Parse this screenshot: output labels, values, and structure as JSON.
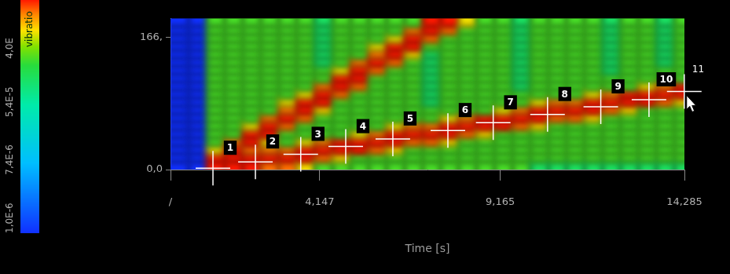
{
  "chart_data": {
    "type": "heatmap",
    "x_label": "Time [s]",
    "xlim": [
      0,
      14.285
    ],
    "xticks": [
      {
        "value": 0,
        "label": "/"
      },
      {
        "value": 4.147,
        "label": "4,147"
      },
      {
        "value": 9.165,
        "label": "9,165"
      },
      {
        "value": 14.285,
        "label": "14,285"
      }
    ],
    "ylim": [
      0,
      190
    ],
    "yticks": [
      {
        "value": 0,
        "label": "0,0"
      },
      {
        "value": 166,
        "label": "166,"
      }
    ],
    "grid": false,
    "x_bins": [
      0,
      0.5,
      1,
      1.5,
      2,
      2.5,
      3,
      3.5,
      4,
      4.5,
      5,
      5.5,
      6,
      6.5,
      7,
      7.5,
      8,
      8.5,
      9,
      9.5,
      10,
      10.5,
      11,
      11.5,
      12,
      12.5,
      13,
      13.5,
      14,
      14.285
    ],
    "y_bins": [
      0,
      10,
      20,
      30,
      40,
      50,
      60,
      70,
      80,
      90,
      100,
      110,
      120,
      130,
      140,
      150,
      160,
      170,
      180,
      190
    ],
    "cells": [
      [
        1e-06,
        1e-06,
        1e-06,
        1e-06,
        1e-06,
        1e-06,
        1e-06,
        1e-06,
        1e-06,
        1e-06,
        1e-06,
        1e-06,
        1e-06,
        1e-06,
        1e-06,
        1e-06,
        1e-06,
        1e-06,
        1e-06
      ],
      [
        1e-06,
        1e-06,
        1e-06,
        1e-06,
        1e-06,
        1e-06,
        1e-06,
        1e-06,
        1e-06,
        1e-06,
        1e-06,
        1e-06,
        1e-06,
        1e-06,
        1e-06,
        1e-06,
        1e-06,
        1e-06,
        1e-06
      ],
      [
        0.003,
        0.003,
        0.001,
        0.0004,
        0.0004,
        0.0004,
        0.0004,
        0.0004,
        0.0004,
        0.0004,
        0.0004,
        0.0004,
        0.0004,
        0.0004,
        0.0004,
        0.0004,
        0.0004,
        0.0004,
        0.0004
      ],
      [
        0.003,
        0.003,
        0.003,
        0.002,
        0.0004,
        0.0004,
        0.0004,
        0.0004,
        0.0004,
        0.0004,
        0.0004,
        0.0004,
        0.0004,
        0.0004,
        0.0004,
        0.0004,
        0.0004,
        0.0004,
        0.0004
      ],
      [
        0.003,
        0.003,
        0.002,
        0.003,
        0.003,
        0.001,
        0.0004,
        0.0004,
        0.0004,
        0.0004,
        0.0004,
        0.0004,
        0.0004,
        0.0004,
        0.0004,
        0.0004,
        0.0004,
        0.0004,
        0.0004
      ],
      [
        0.002,
        0.003,
        0.002,
        0.001,
        0.003,
        0.003,
        0.002,
        0.0004,
        0.0004,
        0.0004,
        0.0004,
        0.0004,
        0.0004,
        0.0004,
        0.0004,
        0.0004,
        0.0004,
        0.0004,
        0.0004
      ],
      [
        0.002,
        0.003,
        0.002,
        0.0004,
        0.0004,
        0.002,
        0.003,
        0.002,
        0.001,
        0.0004,
        0.0004,
        0.0004,
        0.0004,
        0.0004,
        0.0004,
        0.0004,
        0.0004,
        0.0004,
        0.0004
      ],
      [
        0.001,
        0.003,
        0.003,
        0.001,
        0.0004,
        0.0004,
        0.002,
        0.003,
        0.003,
        0.001,
        0.0004,
        0.0004,
        0.0004,
        0.0004,
        0.0004,
        0.0004,
        0.0004,
        0.0004,
        0.0004
      ],
      [
        0.0004,
        0.002,
        0.003,
        0.002,
        0.0004,
        0.0004,
        0.0004,
        0.001,
        0.003,
        0.003,
        0.002,
        0.0004,
        0.0004,
        0.0002,
        0.0002,
        0.0002,
        0.0002,
        0.0002,
        0.0002
      ],
      [
        0.0004,
        0.001,
        0.003,
        0.003,
        0.0004,
        0.0004,
        0.0004,
        0.0004,
        0.0004,
        0.002,
        0.003,
        0.003,
        0.001,
        0.0004,
        0.0004,
        0.0004,
        0.0004,
        0.0004,
        0.0004
      ],
      [
        0.0004,
        0.0004,
        0.003,
        0.003,
        0.001,
        0.0004,
        0.0004,
        0.0004,
        0.0004,
        0.0004,
        0.002,
        0.003,
        0.003,
        0.002,
        0.0004,
        0.0004,
        0.0004,
        0.0004,
        0.0004
      ],
      [
        0.0004,
        0.0004,
        0.002,
        0.003,
        0.002,
        0.0004,
        0.0004,
        0.0004,
        0.0004,
        0.0004,
        0.0004,
        0.0004,
        0.002,
        0.003,
        0.002,
        0.001,
        0.0004,
        0.0004,
        0.0004
      ],
      [
        0.0004,
        0.0004,
        0.001,
        0.003,
        0.003,
        0.001,
        0.0004,
        0.0004,
        0.0004,
        0.0004,
        0.0004,
        0.0004,
        0.0004,
        0.002,
        0.003,
        0.003,
        0.001,
        0.0004,
        0.0004
      ],
      [
        0.0004,
        0.0004,
        0.0004,
        0.002,
        0.003,
        0.002,
        0.0004,
        0.0004,
        0.0004,
        0.0004,
        0.0004,
        0.0004,
        0.0004,
        0.0004,
        0.001,
        0.003,
        0.003,
        0.002,
        0.0004
      ],
      [
        0.0004,
        0.0004,
        0.0004,
        0.002,
        0.003,
        0.002,
        0.0004,
        0.0004,
        0.0002,
        0.0002,
        0.0002,
        0.0002,
        0.0002,
        0.0002,
        0.0002,
        0.0004,
        0.002,
        0.003,
        0.003
      ],
      [
        0.0004,
        0.0004,
        0.0004,
        0.001,
        0.003,
        0.003,
        0.001,
        0.0004,
        0.0004,
        0.0004,
        0.0004,
        0.0004,
        0.0004,
        0.0004,
        0.0004,
        0.0004,
        0.0004,
        0.002,
        0.003
      ],
      [
        0.0004,
        0.0004,
        0.0004,
        0.0004,
        0.002,
        0.003,
        0.002,
        0.0004,
        0.0004,
        0.0004,
        0.0004,
        0.0004,
        0.0004,
        0.0004,
        0.0004,
        0.0004,
        0.0004,
        0.0004,
        0.001
      ],
      [
        0.0004,
        0.0004,
        0.0004,
        0.0004,
        0.001,
        0.003,
        0.003,
        0.0004,
        0.0004,
        0.0004,
        0.0004,
        0.0004,
        0.0004,
        0.0004,
        0.0004,
        0.0004,
        0.0004,
        0.0004,
        0.0004
      ],
      [
        0.0004,
        0.0004,
        0.0004,
        0.0004,
        0.0004,
        0.003,
        0.003,
        0.001,
        0.0004,
        0.0004,
        0.0004,
        0.0004,
        0.0004,
        0.0004,
        0.0004,
        0.0004,
        0.0004,
        0.0004,
        0.0004
      ],
      [
        0.0004,
        0.0004,
        0.0004,
        0.0004,
        0.0004,
        0.002,
        0.003,
        0.002,
        0.0004,
        0.0004,
        0.0002,
        0.0002,
        0.0002,
        0.0002,
        0.0002,
        0.0002,
        0.0002,
        0.0002,
        0.0002
      ],
      [
        0.0002,
        0.0004,
        0.0004,
        0.0004,
        0.0004,
        0.001,
        0.003,
        0.003,
        0.001,
        0.0004,
        0.0004,
        0.0004,
        0.0004,
        0.0004,
        0.0004,
        0.0004,
        0.0004,
        0.0004,
        0.0004
      ],
      [
        0.0002,
        0.0004,
        0.0004,
        0.0004,
        0.0004,
        0.0004,
        0.002,
        0.003,
        0.002,
        0.0004,
        0.0004,
        0.0004,
        0.0004,
        0.0004,
        0.0004,
        0.0004,
        0.0004,
        0.0004,
        0.0004
      ],
      [
        0.0002,
        0.0004,
        0.0004,
        0.0004,
        0.0004,
        0.0004,
        0.002,
        0.003,
        0.002,
        0.0004,
        0.0004,
        0.0004,
        0.0004,
        0.0004,
        0.0004,
        0.0004,
        0.0004,
        0.0004,
        0.0004
      ],
      [
        0.0002,
        0.0004,
        0.0004,
        0.0004,
        0.0004,
        0.0004,
        0.001,
        0.003,
        0.003,
        0.001,
        0.0004,
        0.0004,
        0.0004,
        0.0004,
        0.0004,
        0.0004,
        0.0004,
        0.0004,
        0.0004
      ],
      [
        0.0002,
        0.0004,
        0.0004,
        0.0004,
        0.0004,
        0.0004,
        0.0004,
        0.002,
        0.003,
        0.002,
        0.0004,
        0.0004,
        0.0002,
        0.0002,
        0.0002,
        0.0002,
        0.0002,
        0.0002,
        0.0002
      ],
      [
        0.0002,
        0.0004,
        0.0004,
        0.0004,
        0.0004,
        0.0004,
        0.0004,
        0.001,
        0.003,
        0.003,
        0.0004,
        0.0004,
        0.0004,
        0.0004,
        0.0004,
        0.0004,
        0.0004,
        0.0004,
        0.0004
      ],
      [
        0.0002,
        0.0004,
        0.0004,
        0.0004,
        0.0004,
        0.0004,
        0.0004,
        0.0004,
        0.003,
        0.003,
        0.001,
        0.0004,
        0.0004,
        0.0004,
        0.0004,
        0.0004,
        0.0004,
        0.0004,
        0.0004
      ],
      [
        0.0002,
        0.0004,
        0.0004,
        0.0004,
        0.0004,
        0.0004,
        0.0004,
        0.0004,
        0.002,
        0.003,
        0.002,
        0.0004,
        0.0004,
        0.0002,
        0.0002,
        0.0002,
        0.0002,
        0.0002,
        0.0002
      ],
      [
        0.0002,
        0.0004,
        0.0004,
        0.0004,
        0.0004,
        0.0004,
        0.0004,
        0.0004,
        0.001,
        0.003,
        0.003,
        0.0004,
        0.0004,
        0.0004,
        0.0004,
        0.0004,
        0.0004,
        0.0004,
        0.0004
      ]
    ],
    "colorbar_label": "vibratio",
    "colorbar_lim": [
      1e-06,
      0.003
    ],
    "colorbar_ticks": [
      {
        "value": 1e-06,
        "label": "1,0E-6"
      },
      {
        "value": 7.4e-06,
        "label": "7,4E-6"
      },
      {
        "value": 5.4e-05,
        "label": "5,4E-5"
      },
      {
        "value": 0.0004,
        "label": "4,0E"
      }
    ],
    "markers": {
      "labels": [
        "1",
        "2",
        "3",
        "4",
        "5",
        "6",
        "7",
        "8",
        "9",
        "10",
        "11"
      ],
      "x": [
        1.18,
        2.36,
        3.62,
        4.87,
        6.18,
        7.71,
        8.97,
        10.48,
        11.96,
        13.3,
        14.28
      ],
      "y": [
        1.8,
        9.7,
        19.3,
        29,
        38.6,
        49.2,
        58.9,
        69.4,
        79,
        87.8,
        98.3
      ],
      "marker": "cross",
      "color": "#ffffff"
    }
  }
}
